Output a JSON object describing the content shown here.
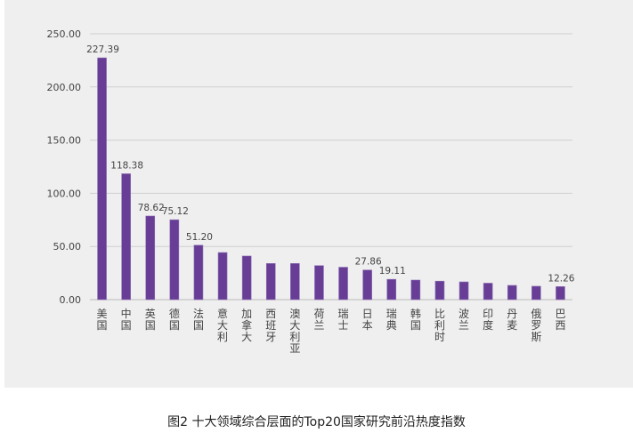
{
  "chart_data": {
    "type": "bar",
    "title": "",
    "xlabel": "",
    "ylabel": "",
    "ylim": [
      0,
      250
    ],
    "yticks": [
      "0.00",
      "50.00",
      "100.00",
      "150.00",
      "200.00",
      "250.00"
    ],
    "categories": [
      "美国",
      "中国",
      "英国",
      "德国",
      "法国",
      "意大利",
      "加拿大",
      "西班牙",
      "澳大利亚",
      "荷兰",
      "瑞士",
      "日本",
      "瑞典",
      "韩国",
      "比利时",
      "波兰",
      "印度",
      "丹麦",
      "俄罗斯",
      "巴西"
    ],
    "values": [
      227.39,
      118.38,
      78.62,
      75.12,
      51.2,
      44.3,
      41.0,
      34.0,
      34.0,
      32.0,
      30.5,
      27.86,
      19.11,
      18.4,
      17.4,
      16.7,
      15.5,
      13.4,
      12.6,
      12.26
    ],
    "data_labels": {
      "0": "227.39",
      "1": "118.38",
      "2": "78.62",
      "3": "75.12",
      "4": "51.20",
      "11": "27.86",
      "12": "19.11",
      "19": "12.26"
    },
    "bar_color": "#673d96",
    "grid": true
  },
  "caption": "图2  十大领域综合层面的Top20国家研究前沿热度指数"
}
